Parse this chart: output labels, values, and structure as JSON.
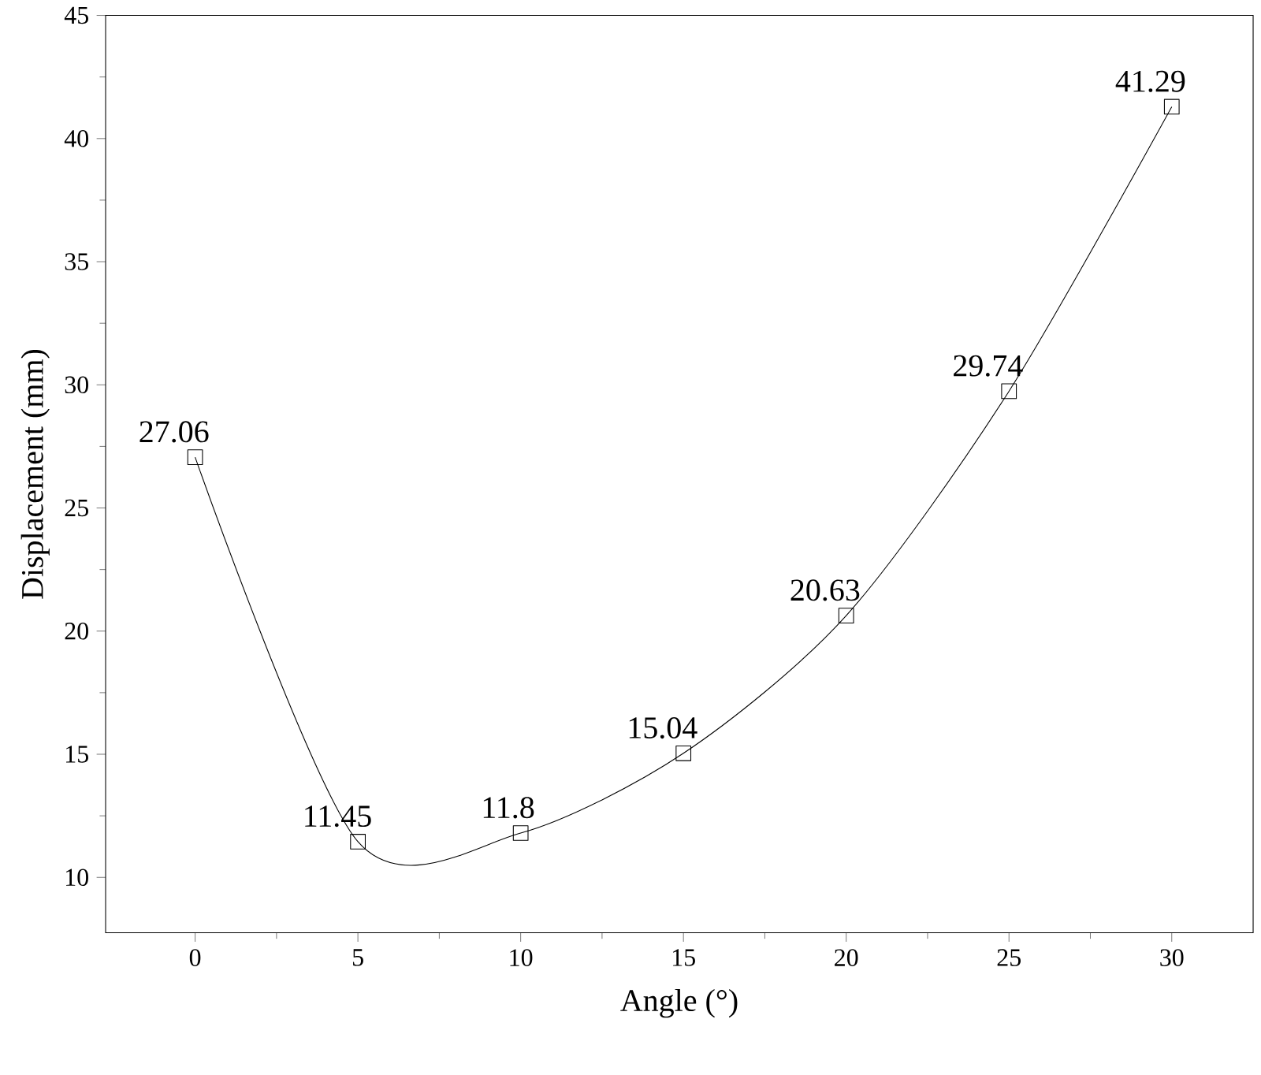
{
  "chart_data": {
    "type": "line",
    "xlabel": "Angle (°)",
    "ylabel": "Displacement (mm)",
    "x": [
      0,
      5,
      10,
      15,
      20,
      25,
      30
    ],
    "values": [
      27.06,
      11.45,
      11.8,
      15.04,
      20.63,
      29.74,
      41.29
    ],
    "color": "#000000",
    "marker": "square",
    "line_style": "solid",
    "data_labels": true,
    "xlim": [
      -2.75,
      32.5
    ],
    "ylim": [
      7.75,
      45
    ],
    "xticks": [
      0,
      5,
      10,
      15,
      20,
      25,
      30
    ],
    "yticks": [
      10,
      15,
      20,
      25,
      30,
      35,
      40,
      45
    ]
  }
}
